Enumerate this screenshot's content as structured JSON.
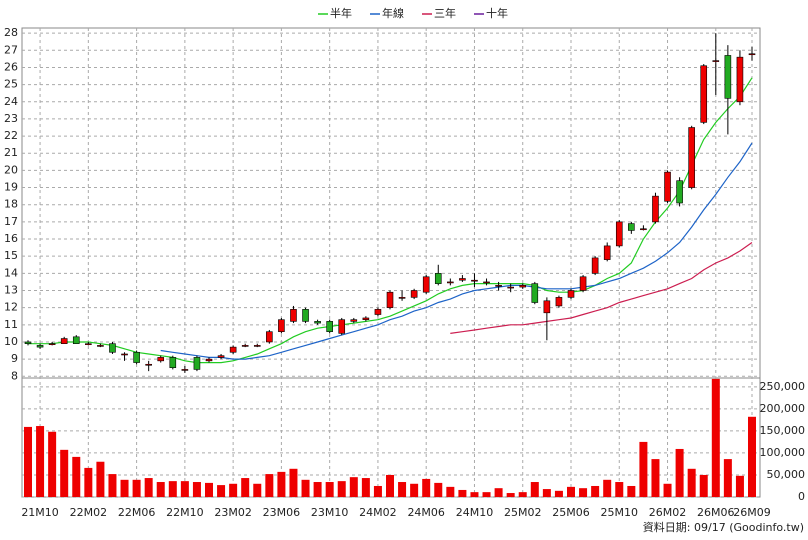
{
  "chart_data": {
    "type": "candlestick",
    "categories": [
      null,
      "21M10",
      null,
      null,
      null,
      "22M02",
      null,
      null,
      null,
      "22M06",
      null,
      null,
      null,
      "22M10",
      null,
      null,
      null,
      "23M02",
      null,
      null,
      null,
      "23M06",
      null,
      null,
      null,
      "23M10",
      null,
      null,
      null,
      "24M02",
      null,
      null,
      null,
      "24M06",
      null,
      null,
      null,
      "24M10",
      null,
      null,
      null,
      "25M02",
      null,
      null,
      null,
      "25M06",
      null,
      null,
      null,
      "25M10",
      null,
      null,
      null,
      "26M02",
      null,
      null,
      null,
      "26M06",
      null,
      null,
      "26M09"
    ],
    "open": [
      10.0,
      9.8,
      9.9,
      9.9,
      10.3,
      9.9,
      9.8,
      9.9,
      9.3,
      9.4,
      8.7,
      8.9,
      9.1,
      8.4,
      9.1,
      8.9,
      9.1,
      9.4,
      9.8,
      9.8,
      10.0,
      10.6,
      11.2,
      11.9,
      11.2,
      11.2,
      10.5,
      11.2,
      11.3,
      11.6,
      12.0,
      12.6,
      12.6,
      12.9,
      14.0,
      13.5,
      13.6,
      13.6,
      13.5,
      13.3,
      13.2,
      13.2,
      13.4,
      11.7,
      12.1,
      12.6,
      13.0,
      14.0,
      14.8,
      15.6,
      16.9,
      16.6,
      17.0,
      18.2,
      19.4,
      19.0,
      22.8,
      26.4,
      26.7,
      24.0,
      26.8
    ],
    "close": [
      9.9,
      9.7,
      9.9,
      10.2,
      9.9,
      9.9,
      9.8,
      9.4,
      9.3,
      8.8,
      8.7,
      9.1,
      8.5,
      8.4,
      8.4,
      9.0,
      9.2,
      9.7,
      9.8,
      9.8,
      10.6,
      11.3,
      11.9,
      11.2,
      11.1,
      10.6,
      11.3,
      11.3,
      11.4,
      11.9,
      12.9,
      12.6,
      13.0,
      13.8,
      13.4,
      13.5,
      13.7,
      13.6,
      13.5,
      13.3,
      13.2,
      13.3,
      12.3,
      12.4,
      12.6,
      13.0,
      13.8,
      14.9,
      15.6,
      17.0,
      16.5,
      16.6,
      18.5,
      19.9,
      18.1,
      22.5,
      26.1,
      26.4,
      24.2,
      26.6,
      26.8
    ],
    "high": [
      10.1,
      9.9,
      10.0,
      10.3,
      10.4,
      10.0,
      9.9,
      10.0,
      9.4,
      9.5,
      8.9,
      9.2,
      9.2,
      8.6,
      9.2,
      9.1,
      9.3,
      9.8,
      9.9,
      9.9,
      10.7,
      11.4,
      12.1,
      12.0,
      11.3,
      11.3,
      11.4,
      11.4,
      11.5,
      12.0,
      13.0,
      13.0,
      13.1,
      13.9,
      14.5,
      13.7,
      13.9,
      14.0,
      13.7,
      13.5,
      13.4,
      13.4,
      13.5,
      12.6,
      12.7,
      13.1,
      13.9,
      15.0,
      15.8,
      17.1,
      17.0,
      16.8,
      18.7,
      20.0,
      19.6,
      22.6,
      26.2,
      28.0,
      27.3,
      27.0,
      27.2
    ],
    "low": [
      9.8,
      9.6,
      9.8,
      9.9,
      9.9,
      9.8,
      9.7,
      9.3,
      8.9,
      8.7,
      8.3,
      8.8,
      8.4,
      8.2,
      8.3,
      8.8,
      9.0,
      9.3,
      9.7,
      9.7,
      9.9,
      10.5,
      11.1,
      11.1,
      11.0,
      10.5,
      10.4,
      11.1,
      11.2,
      11.5,
      11.9,
      12.4,
      12.5,
      12.8,
      13.3,
      13.3,
      13.5,
      13.2,
      13.3,
      13.0,
      12.9,
      13.1,
      12.2,
      10.1,
      12.0,
      12.5,
      12.9,
      13.9,
      14.7,
      15.5,
      16.3,
      16.5,
      16.9,
      18.1,
      17.9,
      18.9,
      22.7,
      24.4,
      22.1,
      23.8,
      26.4
    ],
    "up_color": "#ee0000",
    "down_color": "#22aa22",
    "series": [
      {
        "name": "半年",
        "color": "#22cc22",
        "values": [
          9.9,
          9.9,
          9.9,
          10.0,
          10.0,
          10.0,
          9.9,
          9.8,
          9.6,
          9.4,
          9.3,
          9.2,
          9.1,
          8.9,
          8.8,
          8.8,
          8.8,
          8.9,
          9.1,
          9.3,
          9.6,
          9.9,
          10.3,
          10.6,
          10.8,
          10.9,
          11.0,
          11.1,
          11.2,
          11.3,
          11.5,
          11.8,
          12.1,
          12.4,
          12.8,
          13.1,
          13.3,
          13.4,
          13.4,
          13.4,
          13.4,
          13.4,
          13.3,
          13.0,
          12.9,
          12.9,
          13.0,
          13.3,
          13.7,
          14.0,
          14.6,
          16.0,
          17.0,
          17.8,
          18.8,
          20.3,
          21.8,
          22.8,
          23.6,
          24.3,
          25.4
        ]
      },
      {
        "name": "年線",
        "color": "#1e64c8",
        "values": [
          null,
          null,
          null,
          null,
          null,
          null,
          null,
          null,
          null,
          null,
          null,
          9.5,
          9.4,
          9.3,
          9.2,
          9.1,
          9.1,
          9.0,
          9.0,
          9.1,
          9.2,
          9.4,
          9.6,
          9.8,
          10.0,
          10.2,
          10.4,
          10.6,
          10.8,
          11.0,
          11.3,
          11.5,
          11.8,
          12.0,
          12.3,
          12.5,
          12.8,
          13.0,
          13.1,
          13.2,
          13.3,
          13.3,
          13.2,
          13.1,
          13.1,
          13.1,
          13.2,
          13.3,
          13.5,
          13.7,
          14.0,
          14.3,
          14.7,
          15.2,
          15.8,
          16.7,
          17.7,
          18.6,
          19.6,
          20.5,
          21.6
        ]
      },
      {
        "name": "三年",
        "color": "#cc1e50",
        "values": [
          null,
          null,
          null,
          null,
          null,
          null,
          null,
          null,
          null,
          null,
          null,
          null,
          null,
          null,
          null,
          null,
          null,
          null,
          null,
          null,
          null,
          null,
          null,
          null,
          null,
          null,
          null,
          null,
          null,
          null,
          null,
          null,
          null,
          null,
          null,
          10.5,
          10.6,
          10.7,
          10.8,
          10.9,
          11.0,
          11.0,
          11.1,
          11.2,
          11.3,
          11.4,
          11.6,
          11.8,
          12.0,
          12.3,
          12.5,
          12.7,
          12.9,
          13.1,
          13.4,
          13.7,
          14.2,
          14.6,
          14.9,
          15.3,
          15.8
        ]
      },
      {
        "name": "十年",
        "color": "#6a1e9c",
        "values": [
          null,
          null,
          null,
          null,
          null,
          null,
          null,
          null,
          null,
          null,
          null,
          null,
          null,
          null,
          null,
          null,
          null,
          null,
          null,
          null,
          null,
          null,
          null,
          null,
          null,
          null,
          null,
          null,
          null,
          null,
          null,
          null,
          null,
          null,
          null,
          null,
          null,
          null,
          null,
          null,
          null,
          null,
          null,
          null,
          null,
          null,
          null,
          null,
          null,
          null,
          null,
          null,
          null,
          null,
          null,
          null,
          null,
          null,
          null,
          null,
          null
        ]
      }
    ],
    "ylim": [
      7.9,
      28.3
    ],
    "yticks": [
      8,
      9,
      10,
      11,
      12,
      13,
      14,
      15,
      16,
      17,
      18,
      19,
      20,
      21,
      22,
      23,
      24,
      25,
      26,
      27,
      28
    ],
    "volume": {
      "color": "#ee0000",
      "values": [
        159000,
        161000,
        148000,
        107000,
        91000,
        66000,
        80000,
        52000,
        39000,
        39000,
        43000,
        34000,
        36000,
        36000,
        34000,
        32000,
        27000,
        30000,
        43000,
        30000,
        52000,
        57000,
        64000,
        39000,
        34000,
        34000,
        36000,
        45000,
        43000,
        25000,
        50000,
        34000,
        30000,
        41000,
        32000,
        23000,
        16000,
        11000,
        11000,
        20000,
        9000,
        11000,
        34000,
        18000,
        14000,
        23000,
        20000,
        25000,
        39000,
        34000,
        25000,
        125000,
        86000,
        30000,
        109000,
        64000,
        50000,
        268000,
        86000,
        48000,
        182000
      ]
    },
    "y2lim": [
      0,
      270000
    ],
    "y2ticks": [
      0,
      {
        "value": 50000,
        "label": "50,000"
      },
      {
        "value": 100000,
        "label": "100,000"
      },
      {
        "value": 150000,
        "label": "150,000"
      },
      {
        "value": 200000,
        "label": "200,000"
      },
      {
        "value": 250000,
        "label": "250,000"
      }
    ],
    "grid": true,
    "note": "資料日期: 09/17 (Goodinfo.tw)"
  }
}
